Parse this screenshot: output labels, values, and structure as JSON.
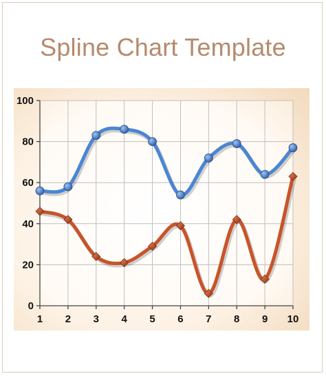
{
  "page": {
    "title": "Spline Chart Template"
  },
  "chart_data": {
    "type": "line",
    "smooth": true,
    "title": "",
    "xlabel": "",
    "ylabel": "",
    "x": [
      1,
      2,
      3,
      4,
      5,
      6,
      7,
      8,
      9,
      10
    ],
    "xlim": [
      1,
      10
    ],
    "ylim": [
      0,
      100
    ],
    "y_ticks": [
      0,
      20,
      40,
      60,
      80,
      100
    ],
    "grid": true,
    "legend": "none",
    "series": [
      {
        "values": [
          56,
          58,
          83,
          86,
          80,
          54,
          72,
          79,
          64,
          77
        ],
        "color": "#4a86d4",
        "marker": "circle"
      },
      {
        "values": [
          46,
          42,
          24,
          21,
          29,
          39,
          6,
          42,
          13,
          63
        ],
        "color": "#c8542a",
        "marker": "diamond"
      }
    ]
  }
}
